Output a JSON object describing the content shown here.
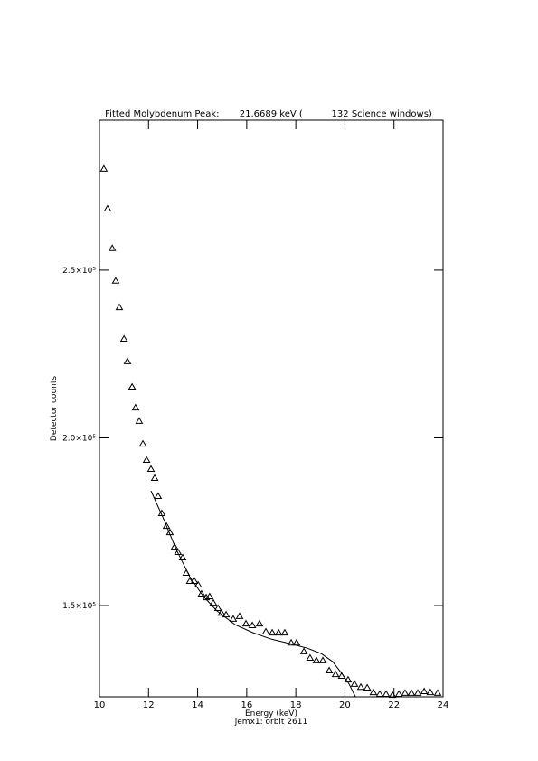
{
  "chart_data": {
    "type": "scatter",
    "title": "Fitted Molybdenum Peak:       21.6689 keV (          132 Science windows)",
    "x_label": "Energy (keV)",
    "y_label": "Detector counts",
    "footer": "jemx1: orbit 2611",
    "xlim": [
      10,
      24
    ],
    "xticks": [
      10,
      12,
      14,
      16,
      18,
      20,
      22,
      24
    ],
    "ylim": [
      122800,
      294700
    ],
    "yticks": [
      {
        "value": 150000,
        "label": "1.5×10⁵"
      },
      {
        "value": 200000,
        "label": "2.0×10⁵"
      },
      {
        "value": 250000,
        "label": "2.5×10⁵"
      }
    ],
    "series": [
      {
        "marker": "triangle",
        "color": "#000000",
        "x": [
          10.18,
          10.33,
          10.52,
          10.66,
          10.81,
          11.0,
          11.14,
          11.33,
          11.47,
          11.62,
          11.77,
          11.92,
          12.1,
          12.25,
          12.39,
          12.54,
          12.73,
          12.87,
          13.06,
          13.2,
          13.39,
          13.54,
          13.68,
          13.87,
          14.02,
          14.16,
          14.35,
          14.49,
          14.64,
          14.83,
          14.97,
          15.16,
          15.45,
          15.71,
          15.97,
          16.23,
          16.52,
          16.78,
          17.04,
          17.3,
          17.55,
          17.81,
          18.03,
          18.33,
          18.58,
          18.84,
          19.1,
          19.36,
          19.62,
          19.87,
          20.13,
          20.39,
          20.65,
          20.91,
          21.16,
          21.42,
          21.68,
          21.94,
          22.2,
          22.45,
          22.71,
          22.97,
          23.23,
          23.48,
          23.78
        ],
        "values": [
          280200,
          268300,
          256500,
          246800,
          238900,
          229500,
          222800,
          215200,
          209000,
          205000,
          198200,
          193400,
          190700,
          188000,
          182600,
          177500,
          173700,
          171800,
          167500,
          165900,
          164300,
          159700,
          157300,
          157300,
          156200,
          153500,
          152400,
          152700,
          150800,
          149200,
          147800,
          147300,
          146000,
          146800,
          144600,
          144100,
          144600,
          142200,
          141900,
          141900,
          141900,
          138900,
          138900,
          136300,
          134400,
          133600,
          133600,
          130600,
          129500,
          129000,
          127900,
          126600,
          125700,
          125500,
          124100,
          123600,
          123600,
          123300,
          123600,
          123900,
          123900,
          123900,
          124400,
          124100,
          123900
        ]
      },
      {
        "marker": "line",
        "color": "#000000",
        "x": [
          12.1,
          12.58,
          13.13,
          13.68,
          14.24,
          14.79,
          15.53,
          16.26,
          17.0,
          17.74,
          18.47,
          19.03,
          19.5,
          19.87,
          20.17,
          20.43
        ],
        "values": [
          184200,
          176400,
          166700,
          158600,
          152700,
          148400,
          144300,
          141900,
          140000,
          138700,
          137300,
          135700,
          133300,
          129800,
          126600,
          122800
        ]
      }
    ]
  }
}
